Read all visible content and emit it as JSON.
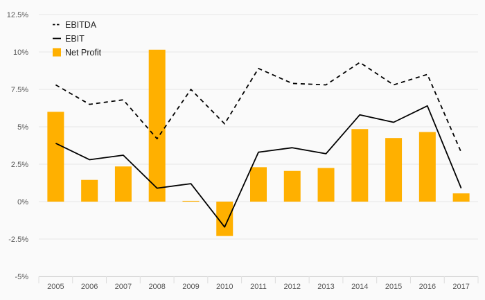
{
  "chart_data": {
    "type": "bar",
    "title": "",
    "xlabel": "",
    "ylabel": "",
    "categories": [
      "2005",
      "2006",
      "2007",
      "2008",
      "2009",
      "2010",
      "2011",
      "2012",
      "2013",
      "2014",
      "2015",
      "2016",
      "2017"
    ],
    "y_ticks": [
      -5,
      -2.5,
      0,
      2.5,
      5,
      7.5,
      10,
      12.5
    ],
    "y_tick_labels": [
      "-5%",
      "-2.5%",
      "0%",
      "2.5%",
      "5%",
      "7.5%",
      "10%",
      "12.5%"
    ],
    "ylim": [
      -5,
      12.5
    ],
    "grid": true,
    "legend_position": "top-left",
    "series": [
      {
        "name": "EBITDA",
        "type": "line",
        "style": "dashed",
        "color": "#000000",
        "values": [
          7.8,
          6.5,
          6.8,
          4.2,
          7.5,
          5.2,
          8.9,
          7.9,
          7.8,
          9.3,
          7.8,
          8.5,
          3.3
        ]
      },
      {
        "name": "EBIT",
        "type": "line",
        "style": "solid",
        "color": "#000000",
        "values": [
          3.9,
          2.8,
          3.1,
          0.9,
          1.2,
          -1.7,
          3.3,
          3.6,
          3.2,
          5.8,
          5.3,
          6.4,
          0.9
        ]
      },
      {
        "name": "Net Profit",
        "type": "bar",
        "color": "#ffb000",
        "values": [
          6.0,
          1.45,
          2.35,
          10.15,
          0.05,
          -2.3,
          2.3,
          2.05,
          2.25,
          4.85,
          4.25,
          4.65,
          0.55
        ]
      }
    ]
  }
}
